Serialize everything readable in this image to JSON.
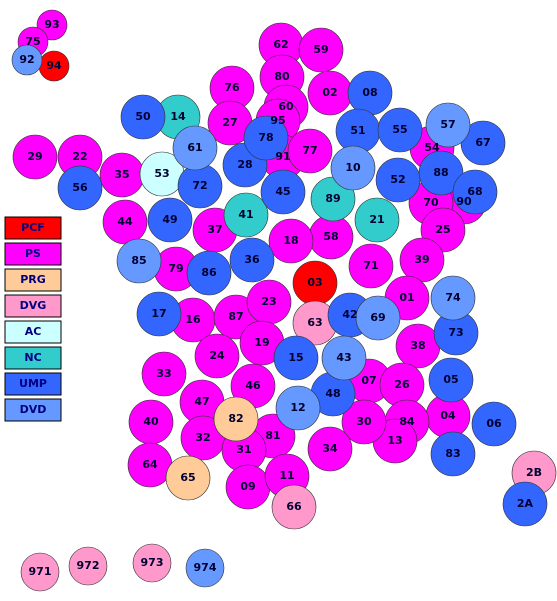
{
  "legend": [
    {
      "label": "PCF",
      "color": "#ff0000",
      "departments": [
        "94",
        "03"
      ]
    },
    {
      "label": "PS",
      "color": "#ff00ff",
      "departments": [
        "93",
        "75",
        "62",
        "59",
        "80",
        "60",
        "02",
        "76",
        "27",
        "95",
        "91",
        "77",
        "54",
        "90",
        "70",
        "25",
        "39",
        "71",
        "58",
        "18",
        "37",
        "44",
        "35",
        "22",
        "29",
        "79",
        "16",
        "87",
        "23",
        "01",
        "38",
        "19",
        "24",
        "33",
        "46",
        "47",
        "40",
        "07",
        "26",
        "04",
        "84",
        "13",
        "30",
        "34",
        "81",
        "32",
        "31",
        "64",
        "09",
        "11"
      ]
    },
    {
      "label": "PRG",
      "color": "#ffcc99",
      "departments": [
        "82",
        "65"
      ]
    },
    {
      "label": "DVG",
      "color": "#ff99cc",
      "departments": [
        "63",
        "66",
        "2B",
        "971",
        "972",
        "973"
      ]
    },
    {
      "label": "AC",
      "color": "#ccffff",
      "departments": [
        "53"
      ]
    },
    {
      "label": "NC",
      "color": "#33cccc",
      "departments": [
        "14",
        "41",
        "89",
        "21"
      ]
    },
    {
      "label": "UMP",
      "color": "#3366ff",
      "departments": [
        "08",
        "51",
        "55",
        "67",
        "88",
        "68",
        "52",
        "28",
        "78",
        "45",
        "50",
        "72",
        "36",
        "86",
        "49",
        "56",
        "17",
        "42",
        "73",
        "15",
        "48",
        "05",
        "06",
        "83",
        "2A"
      ]
    },
    {
      "label": "DVD",
      "color": "#6699ff",
      "departments": [
        "92",
        "57",
        "10",
        "61",
        "85",
        "69",
        "74",
        "43",
        "12",
        "974"
      ]
    }
  ]
}
